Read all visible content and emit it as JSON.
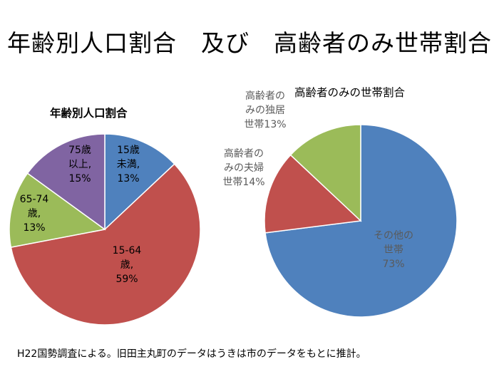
{
  "page": {
    "title": "年齢別人口割合　及び　高齢者のみ世帯割合",
    "footnote": "H22国勢調査による。旧田主丸町のデータはうきは市のデータをもとに推計。"
  },
  "chart_data": [
    {
      "type": "pie",
      "title": "年齢別人口割合",
      "slices": [
        {
          "label": [
            "15歳",
            "未満,",
            "13%"
          ],
          "value": 13,
          "color": "#4f81bd"
        },
        {
          "label": [
            "15-64",
            "歳,",
            "59%"
          ],
          "value": 59,
          "color": "#c0504d"
        },
        {
          "label": [
            "65-74",
            "歳,",
            "13%"
          ],
          "value": 13,
          "color": "#9bbb59"
        },
        {
          "label": [
            "75歳",
            "以上,",
            "15%"
          ],
          "value": 15,
          "color": "#8064a2"
        }
      ]
    },
    {
      "type": "pie",
      "title": "高齢者のみの世帯割合",
      "slices": [
        {
          "label": [
            "その他の",
            "世帯",
            "73%"
          ],
          "value": 73,
          "color": "#4f81bd"
        },
        {
          "label": [
            "高齢者の",
            "みの夫婦",
            "世帯14%"
          ],
          "value": 14,
          "color": "#c0504d"
        },
        {
          "label": [
            "高齢者の",
            "みの独居",
            "世帯13%"
          ],
          "value": 13,
          "color": "#9bbb59"
        }
      ]
    }
  ]
}
